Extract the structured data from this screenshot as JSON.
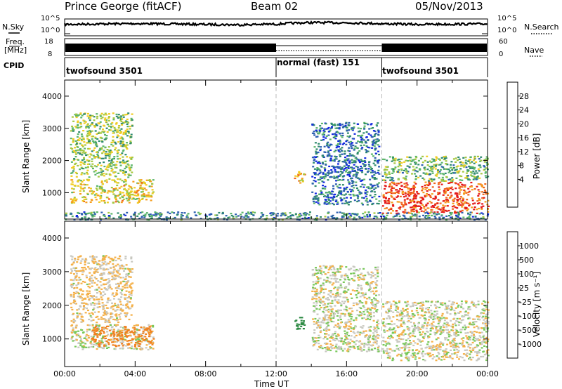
{
  "header": {
    "station": "Prince George (fitACF)",
    "beam": "Beam 02",
    "date": "05/Nov/2013"
  },
  "noise_panel": {
    "left_label": "N.Sky",
    "right_label": "N.Search",
    "left_ticks": [
      "10^5",
      "10^0"
    ],
    "right_ticks": [
      "10^5",
      "10^0"
    ]
  },
  "freq_panel": {
    "left_label_1": "Freq.",
    "left_label_2": "[MHz]",
    "right_label": "Nave",
    "left_ticks": [
      "18",
      "8"
    ],
    "right_ticks": [
      "60",
      "0"
    ]
  },
  "cpid": {
    "label": "CPID",
    "segments": [
      "twofsound 3501",
      "normal (fast) 151",
      "twofsound 3501"
    ]
  },
  "time_axis": {
    "ticks": [
      "00:00",
      "04:00",
      "08:00",
      "12:00",
      "16:00",
      "20:00",
      "00:00"
    ],
    "label": "Time UT"
  },
  "power_panel": {
    "ylabel": "Slant Range [km]",
    "yticks": [
      "4000",
      "3000",
      "2000",
      "1000"
    ],
    "cbar_label": "Power [dB]",
    "cbar_ticks": [
      "28",
      "24",
      "20",
      "16",
      "12",
      "8",
      "4"
    ]
  },
  "velocity_panel": {
    "ylabel": "Slant Range [km]",
    "yticks": [
      "4000",
      "3000",
      "2000",
      "1000"
    ],
    "cbar_label": "Velocity [m s⁻¹]",
    "cbar_ticks": [
      "1000",
      "500",
      "100",
      "25",
      "-25",
      "-100",
      "-500",
      "-1000"
    ]
  },
  "chart_data": [
    {
      "type": "line",
      "title": "N.Sky / N.Search",
      "x_range_hours": [
        0,
        24
      ],
      "log_y": true,
      "ylim": [
        1,
        100000
      ],
      "series": [
        {
          "name": "N.Sky",
          "x": [
            0,
            2,
            4,
            6,
            8,
            10,
            12,
            14,
            16,
            18,
            20,
            22,
            24
          ],
          "y": [
            2000,
            3000,
            4000,
            3000,
            2000,
            1500,
            2500,
            9000,
            8000,
            3500,
            2000,
            2500,
            3000
          ]
        }
      ]
    },
    {
      "type": "line",
      "title": "Freq. / Nave",
      "x_range_hours": [
        0,
        24
      ],
      "series": [
        {
          "name": "Freq. [MHz]",
          "x": [
            0,
            12,
            12,
            18,
            18,
            24
          ],
          "y": [
            13,
            13,
            13,
            13,
            13,
            13
          ]
        },
        {
          "name": "Nave",
          "x": [
            0,
            12,
            12,
            18,
            18,
            24
          ],
          "y": [
            30,
            30,
            15,
            15,
            30,
            30
          ]
        }
      ]
    },
    {
      "type": "heatmap",
      "title": "Power [dB]",
      "x_range_hours": [
        0,
        24
      ],
      "ylim": [
        180,
        4500
      ],
      "colorbar": {
        "range": [
          0,
          30
        ],
        "colors": [
          "#1228e0",
          "#2c5fb0",
          "#2f8a6e",
          "#5db66b",
          "#a6c840",
          "#f0cc22",
          "#f59e1e",
          "#f1651c",
          "#e41a1a"
        ]
      },
      "regions": [
        {
          "t0": 0.3,
          "t1": 5.0,
          "r0": 700,
          "r1": 1450,
          "p": 18
        },
        {
          "t0": 0.3,
          "t1": 3.8,
          "r0": 1500,
          "r1": 3500,
          "p": 14
        },
        {
          "t0": 13.0,
          "t1": 13.6,
          "r0": 1300,
          "r1": 1700,
          "p": 20
        },
        {
          "t0": 14.0,
          "t1": 17.8,
          "r0": 650,
          "r1": 3200,
          "p": 6
        },
        {
          "t0": 18.0,
          "t1": 24.0,
          "r0": 380,
          "r1": 1350,
          "p": 27
        },
        {
          "t0": 18.0,
          "t1": 24.0,
          "r0": 1380,
          "r1": 2150,
          "p": 12
        },
        {
          "t0": 0.0,
          "t1": 24.0,
          "r0": 180,
          "r1": 420,
          "p": 8
        }
      ]
    },
    {
      "type": "heatmap",
      "title": "Velocity [m s⁻¹]",
      "x_range_hours": [
        0,
        24
      ],
      "ylim": [
        180,
        4500
      ],
      "colorbar": {
        "levels": [
          1000,
          500,
          100,
          25,
          -25,
          -100,
          -500,
          -1000
        ],
        "colors": [
          "#1b3fbe",
          "#2c6fae",
          "#2e8a44",
          "#78c85a",
          "#c8c8c0",
          "#f4b048",
          "#f0801e",
          "#ee4a14",
          "#e01a1a"
        ]
      },
      "regions": [
        {
          "t0": 0.3,
          "t1": 5.0,
          "r0": 700,
          "r1": 1450,
          "v": 0
        },
        {
          "t0": 1.5,
          "t1": 5.0,
          "r0": 800,
          "r1": 1400,
          "v": -150
        },
        {
          "t0": 0.3,
          "t1": 3.8,
          "r0": 1500,
          "r1": 3500,
          "v": -30
        },
        {
          "t0": 13.0,
          "t1": 13.6,
          "r0": 1300,
          "r1": 1700,
          "v": 400
        },
        {
          "t0": 14.0,
          "t1": 17.8,
          "r0": 650,
          "r1": 3200,
          "v": 0
        },
        {
          "t0": 18.0,
          "t1": 24.0,
          "r0": 380,
          "r1": 2150,
          "v": 0
        }
      ]
    }
  ]
}
